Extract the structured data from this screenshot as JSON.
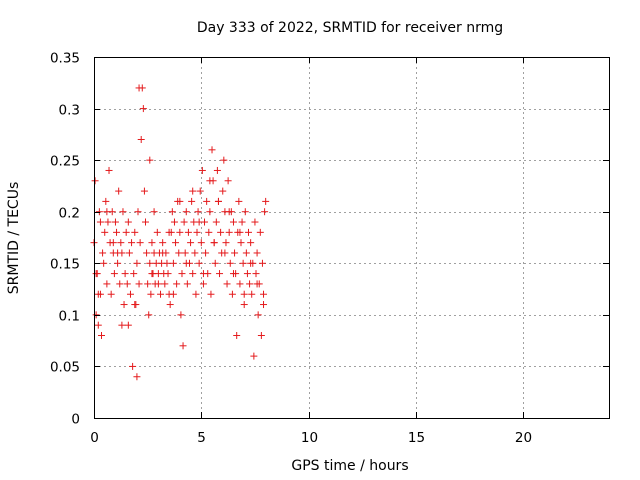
{
  "chart_data": {
    "type": "scatter",
    "title": "Day 333 of 2022, SRMTID for receiver nrmg",
    "xlabel": "GPS time / hours",
    "ylabel": "SRMTID / TECUs",
    "xlim": [
      0,
      24
    ],
    "ylim": [
      0,
      0.35
    ],
    "xticks": [
      0,
      5,
      10,
      15,
      20
    ],
    "xtick_labels": [
      "0",
      "5",
      "10",
      "15",
      "20"
    ],
    "yticks": [
      0,
      0.05,
      0.1,
      0.15,
      0.2,
      0.25,
      0.3,
      0.35
    ],
    "ytick_labels": [
      "0",
      "0.05",
      "0.1",
      "0.15",
      "0.2",
      "0.25",
      "0.3",
      "0.35"
    ],
    "grid": true,
    "marker": "+",
    "marker_color": "#e41a1c",
    "series": [
      {
        "name": "nrmg",
        "x": [
          0.0,
          0.05,
          0.1,
          0.15,
          0.2,
          0.25,
          0.3,
          0.35,
          0.4,
          0.45,
          0.5,
          0.55,
          0.6,
          0.65,
          0.7,
          0.75,
          0.8,
          0.85,
          0.9,
          0.95,
          1.0,
          1.05,
          1.1,
          1.15,
          1.2,
          1.25,
          1.3,
          1.35,
          1.4,
          1.45,
          1.5,
          1.55,
          1.6,
          1.65,
          1.7,
          1.75,
          1.8,
          1.85,
          1.9,
          1.95,
          2.0,
          2.05,
          2.1,
          2.15,
          2.2,
          2.25,
          2.3,
          2.35,
          2.4,
          2.45,
          2.5,
          2.55,
          2.6,
          2.65,
          2.7,
          2.75,
          2.8,
          2.85,
          2.9,
          2.95,
          3.0,
          3.05,
          3.1,
          3.15,
          3.2,
          3.25,
          3.3,
          3.35,
          3.4,
          3.45,
          3.5,
          3.55,
          3.6,
          3.65,
          3.7,
          3.75,
          3.8,
          3.85,
          3.9,
          3.95,
          4.0,
          4.05,
          4.1,
          4.15,
          4.2,
          4.25,
          4.3,
          4.35,
          4.4,
          4.45,
          4.5,
          4.55,
          4.6,
          4.65,
          4.7,
          4.75,
          4.8,
          4.85,
          4.9,
          4.95,
          5.0,
          5.05,
          5.1,
          5.15,
          5.2,
          5.25,
          5.3,
          5.35,
          5.4,
          5.45,
          5.5,
          5.55,
          5.6,
          5.65,
          5.7,
          5.75,
          5.8,
          5.85,
          5.9,
          5.95,
          6.0,
          6.05,
          6.1,
          6.15,
          6.2,
          6.25,
          6.3,
          6.35,
          6.4,
          6.45,
          6.5,
          6.55,
          6.6,
          6.65,
          6.7,
          6.75,
          6.8,
          6.85,
          6.9,
          6.95,
          7.0,
          7.05,
          7.1,
          7.15,
          7.2,
          7.25,
          7.3,
          7.35,
          7.4,
          7.45,
          7.5,
          7.55,
          7.6,
          7.65,
          7.7,
          7.75,
          7.8,
          7.85,
          7.9,
          7.95,
          8.0,
          0.1,
          0.2,
          0.3,
          0.6,
          0.9,
          1.1,
          1.3,
          1.6,
          1.9,
          2.0,
          2.1,
          2.6,
          2.7,
          2.8,
          3.0,
          3.2,
          3.5,
          3.7,
          4.0,
          4.3,
          4.6,
          4.9,
          5.1,
          5.4,
          5.6,
          5.8,
          6.1,
          6.3,
          6.5,
          6.8,
          7.0,
          7.3,
          7.6,
          7.9
        ],
        "y": [
          0.17,
          0.23,
          0.1,
          0.14,
          0.09,
          0.2,
          0.12,
          0.08,
          0.16,
          0.15,
          0.18,
          0.21,
          0.13,
          0.19,
          0.24,
          0.17,
          0.12,
          0.2,
          0.16,
          0.14,
          0.19,
          0.18,
          0.15,
          0.22,
          0.13,
          0.17,
          0.16,
          0.2,
          0.11,
          0.14,
          0.18,
          0.13,
          0.09,
          0.16,
          0.12,
          0.17,
          0.05,
          0.14,
          0.18,
          0.11,
          0.15,
          0.2,
          0.13,
          0.17,
          0.27,
          0.32,
          0.3,
          0.22,
          0.19,
          0.16,
          0.13,
          0.1,
          0.15,
          0.12,
          0.17,
          0.14,
          0.16,
          0.13,
          0.15,
          0.18,
          0.14,
          0.16,
          0.12,
          0.15,
          0.17,
          0.14,
          0.13,
          0.16,
          0.15,
          0.14,
          0.12,
          0.11,
          0.18,
          0.2,
          0.15,
          0.19,
          0.17,
          0.13,
          0.21,
          0.16,
          0.18,
          0.1,
          0.14,
          0.07,
          0.19,
          0.16,
          0.2,
          0.13,
          0.18,
          0.15,
          0.17,
          0.21,
          0.14,
          0.19,
          0.16,
          0.12,
          0.18,
          0.2,
          0.15,
          0.22,
          0.17,
          0.24,
          0.13,
          0.19,
          0.16,
          0.21,
          0.14,
          0.18,
          0.2,
          0.12,
          0.26,
          0.23,
          0.17,
          0.15,
          0.19,
          0.24,
          0.21,
          0.14,
          0.18,
          0.16,
          0.22,
          0.25,
          0.2,
          0.17,
          0.13,
          0.23,
          0.18,
          0.15,
          0.2,
          0.12,
          0.19,
          0.16,
          0.14,
          0.08,
          0.18,
          0.21,
          0.13,
          0.17,
          0.19,
          0.15,
          0.11,
          0.2,
          0.16,
          0.14,
          0.18,
          0.13,
          0.17,
          0.12,
          0.15,
          0.06,
          0.19,
          0.14,
          0.16,
          0.1,
          0.13,
          0.18,
          0.08,
          0.15,
          0.12,
          0.2,
          0.21,
          0.14,
          0.12,
          0.19,
          0.2,
          0.17,
          0.16,
          0.09,
          0.19,
          0.11,
          0.04,
          0.32,
          0.25,
          0.14,
          0.2,
          0.13,
          0.16,
          0.18,
          0.12,
          0.21,
          0.15,
          0.22,
          0.19,
          0.14,
          0.23,
          0.17,
          0.21,
          0.16,
          0.2,
          0.14,
          0.18,
          0.12,
          0.15,
          0.13,
          0.11
        ]
      }
    ]
  }
}
